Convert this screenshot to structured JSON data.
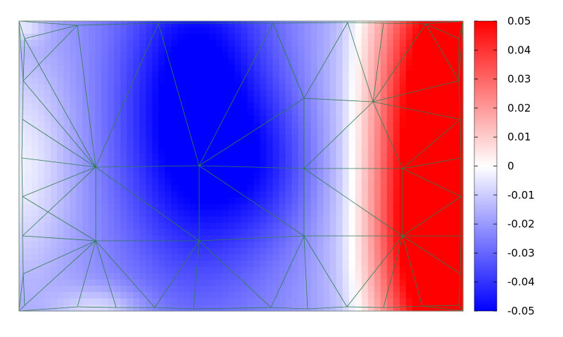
{
  "chart_data": {
    "type": "heatmap",
    "colorbar": {
      "min": -0.05,
      "max": 0.05,
      "colors": {
        "low": "#0000ff",
        "mid": "#ffffff",
        "high": "#ff0000"
      },
      "ticks": [
        "0.05",
        "0.04",
        "0.03",
        "0.02",
        "0.01",
        "0",
        "-0.01",
        "-0.02",
        "-0.03",
        "-0.04",
        "-0.05"
      ]
    },
    "mesh_color": "#2e7d4f",
    "grid": false,
    "legend": "right"
  }
}
